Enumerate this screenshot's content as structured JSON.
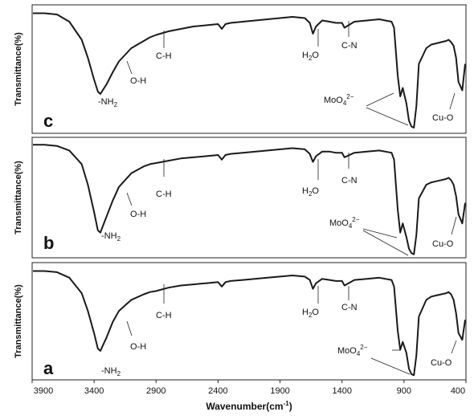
{
  "chart_data": {
    "type": "line",
    "xlabel": "Wavenumber(cm",
    "xlabel_sup": "-1",
    "xlabel_end": ")",
    "ylabel": "Transmittance(%)",
    "xlim": [
      3900,
      400
    ],
    "x_inverted": true,
    "x_ticks": [
      3900,
      3400,
      2900,
      2400,
      1900,
      1400,
      900,
      400
    ],
    "y_ticks_shown": false,
    "grid": false,
    "legend": "none",
    "panels": [
      {
        "label": "c",
        "series": [
          {
            "x": [
              3950,
              3800,
              3700,
              3600,
              3500,
              3450,
              3400,
              3370,
              3350,
              3300,
              3250,
              3200,
              3100,
              3000,
              2950,
              2900,
              2800,
              2700,
              2600,
              2500,
              2400,
              2370,
              2340,
              2300,
              2200,
              2000,
              1800,
              1700,
              1660,
              1635,
              1610,
              1560,
              1500,
              1450,
              1400,
              1380,
              1300,
              1200,
              1100,
              1000,
              980,
              950,
              930,
              910,
              880,
              860,
              840,
              820,
              800,
              780,
              720,
              680,
              640,
              600,
              560,
              540,
              520,
              500,
              480,
              460,
              430,
              400
            ],
            "y": [
              97,
              97,
              96,
              90,
              75,
              60,
              42,
              32,
              30,
              38,
              48,
              57,
              68,
              74,
              77,
              79,
              82,
              84,
              86,
              87,
              88,
              84,
              88,
              89,
              90,
              92,
              94,
              93,
              89,
              80,
              86,
              91,
              90,
              89,
              89,
              85,
              90,
              91,
              92,
              90,
              85,
              45,
              28,
              35,
              22,
              8,
              3,
              2,
              20,
              55,
              68,
              71,
              72,
              73,
              74,
              75,
              73,
              70,
              60,
              40,
              33,
              55
            ]
          }
        ],
        "annotations": [
          {
            "text": "-NH",
            "sub": "2",
            "sup": ""
          },
          {
            "text": "O-H",
            "sub": "",
            "sup": ""
          },
          {
            "text": "C-H",
            "sub": "",
            "sup": ""
          },
          {
            "text": "H",
            "sub": "2",
            "after": "O",
            "sup": ""
          },
          {
            "text": "C-N",
            "sub": "",
            "sup": ""
          },
          {
            "text": "MoO",
            "sub": "4",
            "sup": "2−"
          },
          {
            "text": "Cu-O",
            "sub": "",
            "sup": ""
          }
        ]
      },
      {
        "label": "b",
        "series": [
          {
            "x": [
              3950,
              3800,
              3700,
              3600,
              3500,
              3450,
              3400,
              3370,
              3350,
              3300,
              3250,
              3200,
              3100,
              3000,
              2950,
              2900,
              2800,
              2700,
              2600,
              2500,
              2400,
              2370,
              2340,
              2300,
              2200,
              2000,
              1800,
              1700,
              1660,
              1635,
              1610,
              1560,
              1500,
              1450,
              1400,
              1380,
              1300,
              1200,
              1100,
              1000,
              980,
              950,
              930,
              910,
              880,
              860,
              840,
              820,
              800,
              780,
              720,
              680,
              640,
              600,
              560,
              540,
              520,
              500,
              480,
              460,
              430,
              400
            ],
            "y": [
              97,
              97,
              96,
              92,
              80,
              62,
              38,
              22,
              20,
              34,
              48,
              60,
              72,
              78,
              80,
              81,
              83,
              85,
              86,
              87,
              88,
              84,
              88,
              89,
              90,
              92,
              94,
              93,
              89,
              82,
              87,
              91,
              91,
              90,
              90,
              86,
              90,
              91,
              92,
              90,
              84,
              40,
              20,
              28,
              16,
              6,
              2,
              1,
              18,
              50,
              62,
              64,
              65,
              66,
              67,
              68,
              66,
              62,
              52,
              36,
              28,
              46
            ]
          }
        ],
        "annotations": [
          {
            "text": "-NH",
            "sub": "2",
            "sup": ""
          },
          {
            "text": "O-H",
            "sub": "",
            "sup": ""
          },
          {
            "text": "C-H",
            "sub": "",
            "sup": ""
          },
          {
            "text": "H",
            "sub": "2",
            "after": "O",
            "sup": ""
          },
          {
            "text": "C-N",
            "sub": "",
            "sup": ""
          },
          {
            "text": "MoO",
            "sub": "4",
            "sup": "2−"
          },
          {
            "text": "Cu-O",
            "sub": "",
            "sup": ""
          }
        ]
      },
      {
        "label": "a",
        "series": [
          {
            "x": [
              3950,
              3800,
              3700,
              3600,
              3500,
              3450,
              3400,
              3370,
              3350,
              3300,
              3250,
              3200,
              3100,
              3000,
              2950,
              2900,
              2800,
              2700,
              2600,
              2500,
              2400,
              2370,
              2340,
              2300,
              2200,
              2000,
              1800,
              1700,
              1660,
              1635,
              1610,
              1560,
              1500,
              1450,
              1400,
              1380,
              1300,
              1200,
              1100,
              1000,
              980,
              950,
              930,
              910,
              880,
              860,
              840,
              820,
              800,
              780,
              720,
              680,
              640,
              600,
              560,
              540,
              520,
              500,
              480,
              460,
              430,
              400
            ],
            "y": [
              96,
              96,
              95,
              90,
              76,
              60,
              40,
              26,
              24,
              36,
              50,
              60,
              70,
              75,
              77,
              78,
              81,
              83,
              84,
              85,
              86,
              82,
              86,
              87,
              88,
              90,
              92,
              91,
              88,
              80,
              85,
              89,
              88,
              87,
              87,
              83,
              88,
              89,
              90,
              88,
              82,
              42,
              25,
              32,
              22,
              8,
              3,
              2,
              20,
              55,
              70,
              73,
              74,
              75,
              76,
              77,
              75,
              70,
              58,
              40,
              34,
              52
            ]
          }
        ],
        "annotations": [
          {
            "text": "-NH",
            "sub": "2",
            "sup": ""
          },
          {
            "text": "O-H",
            "sub": "",
            "sup": ""
          },
          {
            "text": "C-H",
            "sub": "",
            "sup": ""
          },
          {
            "text": "H",
            "sub": "2",
            "after": "O",
            "sup": ""
          },
          {
            "text": "C-N",
            "sub": "",
            "sup": ""
          },
          {
            "text": "MoO",
            "sub": "4",
            "sup": "2−"
          },
          {
            "text": "Cu-O",
            "sub": "",
            "sup": ""
          }
        ]
      }
    ]
  },
  "colors": {
    "line": "#1a1a1a",
    "frame": "#222222",
    "background": "#ffffff"
  }
}
